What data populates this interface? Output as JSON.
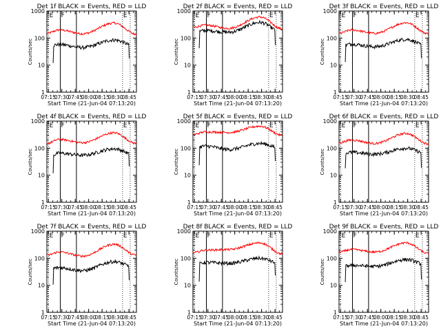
{
  "chart_data": {
    "type": "line",
    "layout": "3x3 grid",
    "x_tick_labels": [
      "07:15",
      "07:30",
      "07:45",
      "08:00",
      "08:15",
      "08:30",
      "08:45"
    ],
    "x_range_minutes": [
      0,
      100
    ],
    "y_scale": "log",
    "y_range": [
      1,
      1000
    ],
    "y_tick_labels": [
      "1",
      "10",
      "100",
      "1000"
    ],
    "ylabel": "Counts/sec",
    "xlabel": "Start Time (21-Jun-04 07:13:20)",
    "marker_letters": [
      "F",
      "E"
    ],
    "colors": {
      "events": "#000000",
      "lld": "#ff0000"
    },
    "panels": [
      {
        "title": "Det 1f BLACK = Events, RED = LLD",
        "red": {
          "start": 150,
          "early": 200,
          "mid": 145,
          "peak": 360,
          "end": 140
        },
        "black": {
          "start": 50,
          "early": 58,
          "mid": 45,
          "peak": 85,
          "end": 50
        }
      },
      {
        "title": "Det 2f BLACK = Events, RED = LLD",
        "red": {
          "start": 250,
          "early": 300,
          "mid": 230,
          "peak": 600,
          "end": 220
        },
        "black": {
          "start": 160,
          "early": 190,
          "mid": 165,
          "peak": 380,
          "end": 160
        }
      },
      {
        "title": "Det 3f BLACK = Events, RED = LLD",
        "red": {
          "start": 150,
          "early": 200,
          "mid": 150,
          "peak": 370,
          "end": 145
        },
        "black": {
          "start": 50,
          "early": 60,
          "mid": 48,
          "peak": 90,
          "end": 48
        }
      },
      {
        "title": "Det 4f BLACK = Events, RED = LLD",
        "red": {
          "start": 150,
          "early": 210,
          "mid": 160,
          "peak": 370,
          "end": 150
        },
        "black": {
          "start": 45,
          "early": 65,
          "mid": 55,
          "peak": 95,
          "end": 55
        }
      },
      {
        "title": "Det 5f BLACK = Events, RED = LLD",
        "red": {
          "start": 320,
          "early": 400,
          "mid": 380,
          "peak": 650,
          "end": 300
        },
        "black": {
          "start": 100,
          "early": 120,
          "mid": 90,
          "peak": 150,
          "end": 95
        }
      },
      {
        "title": "Det 6f BLACK = Events, RED = LLD",
        "red": {
          "start": 160,
          "early": 200,
          "mid": 150,
          "peak": 350,
          "end": 145
        },
        "black": {
          "start": 60,
          "early": 70,
          "mid": 60,
          "peak": 100,
          "end": 60
        }
      },
      {
        "title": "Det 7f BLACK = Events, RED = LLD",
        "red": {
          "start": 130,
          "early": 170,
          "mid": 120,
          "peak": 330,
          "end": 130
        },
        "black": {
          "start": 40,
          "early": 45,
          "mid": 35,
          "peak": 75,
          "end": 45
        }
      },
      {
        "title": "Det 8f BLACK = Events, RED = LLD",
        "red": {
          "start": 160,
          "early": 200,
          "mid": 210,
          "peak": 370,
          "end": 145
        },
        "black": {
          "start": 55,
          "early": 70,
          "mid": 65,
          "peak": 100,
          "end": 60
        }
      },
      {
        "title": "Det 9f BLACK = Events, RED = LLD",
        "red": {
          "start": 170,
          "early": 210,
          "mid": 170,
          "peak": 370,
          "end": 150
        },
        "black": {
          "start": 45,
          "early": 55,
          "mid": 50,
          "peak": 90,
          "end": 55
        }
      }
    ]
  }
}
